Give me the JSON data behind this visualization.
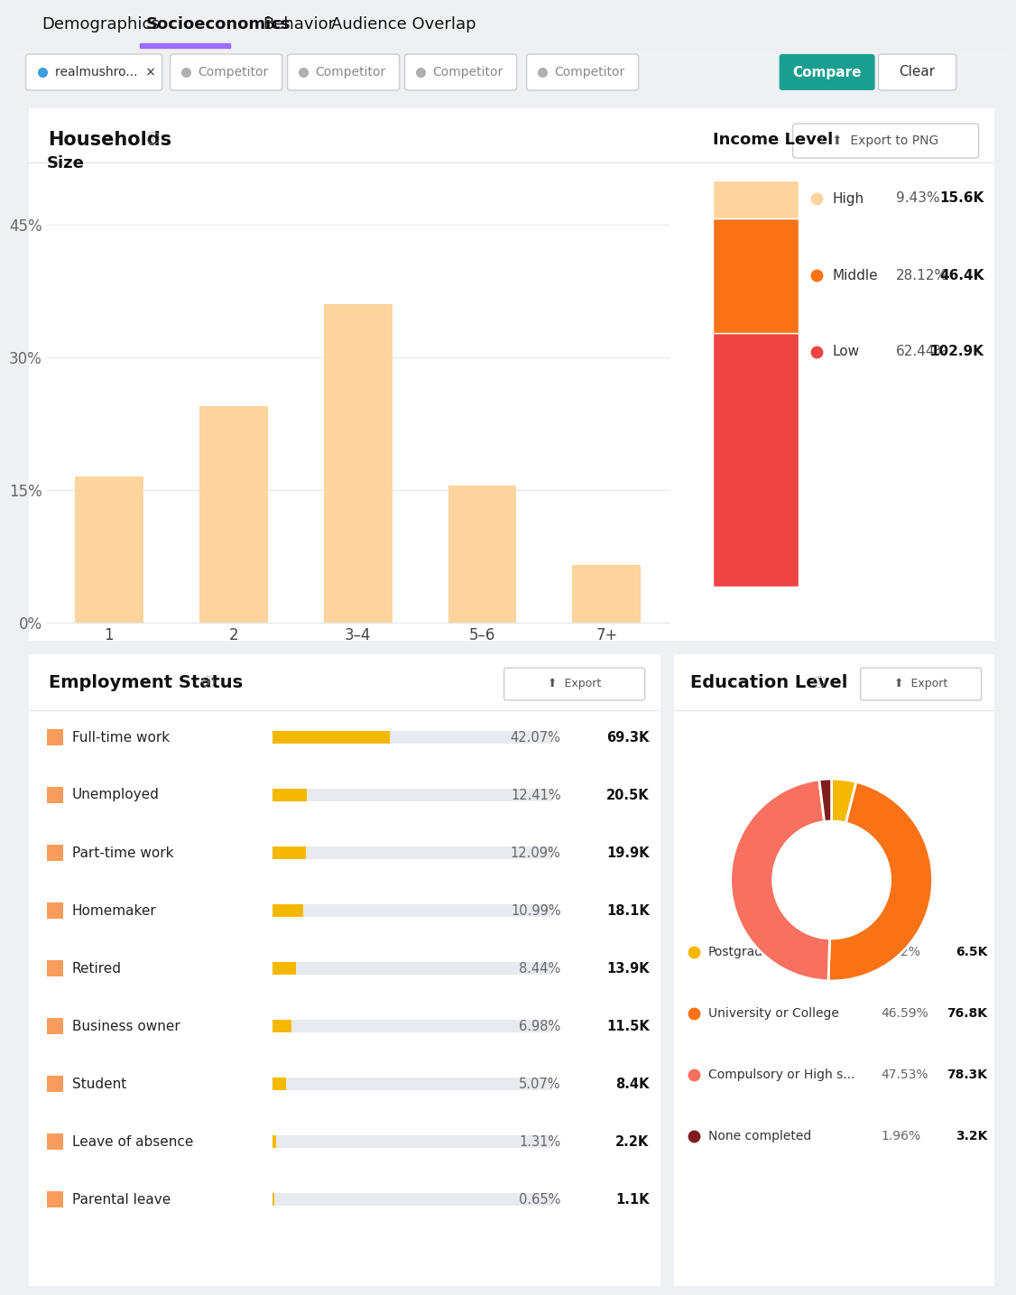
{
  "bg_color": "#eef0f4",
  "card_color": "#ffffff",
  "tab_labels": [
    "Demographics",
    "Socioeconomics",
    "Behavior",
    "Audience Overlap"
  ],
  "active_tab": 1,
  "tab_underline_color": "#9b6dff",
  "compare_btn_color": "#1a9e8f",
  "households_title": "Households",
  "size_title": "Size",
  "size_categories": [
    "1",
    "2",
    "3–4",
    "5–6",
    "7+"
  ],
  "size_values": [
    16.5,
    24.5,
    36.0,
    15.5,
    6.5
  ],
  "size_bar_color": "#fdd49e",
  "size_yticks": [
    "0%",
    "15%",
    "30%",
    "45%"
  ],
  "size_ytick_vals": [
    0,
    15,
    30,
    45
  ],
  "income_title": "Income Level",
  "income_labels": [
    "High",
    "Middle",
    "Low"
  ],
  "income_pcts": [
    "9.43%",
    "28.12%",
    "62.44%"
  ],
  "income_vals": [
    "15.6K",
    "46.4K",
    "102.9K"
  ],
  "income_colors": [
    "#fdd49e",
    "#f97316",
    "#ef4444"
  ],
  "income_stacked_vals": [
    9.43,
    28.12,
    62.44
  ],
  "employment_title": "Employment Status",
  "employment_labels": [
    "Full-time work",
    "Unemployed",
    "Part-time work",
    "Homemaker",
    "Retired",
    "Business owner",
    "Student",
    "Leave of absence",
    "Parental leave"
  ],
  "employment_pcts": [
    "42.07%",
    "12.41%",
    "12.09%",
    "10.99%",
    "8.44%",
    "6.98%",
    "5.07%",
    "1.31%",
    "0.65%"
  ],
  "employment_vals": [
    "69.3K",
    "20.5K",
    "19.9K",
    "18.1K",
    "13.9K",
    "11.5K",
    "8.4K",
    "2.2K",
    "1.1K"
  ],
  "employment_bar_pcts": [
    42.07,
    12.41,
    12.09,
    10.99,
    8.44,
    6.98,
    5.07,
    1.31,
    0.65
  ],
  "employment_bar_color": "#f5b800",
  "employment_bar_bg": "#e8eaf0",
  "education_title": "Education Level",
  "edu_labels": [
    "Postgraduate",
    "University or College",
    "Compulsory or High s...",
    "None completed"
  ],
  "edu_pcts": [
    "3.92%",
    "46.59%",
    "47.53%",
    "1.96%"
  ],
  "edu_vals": [
    "6.5K",
    "76.8K",
    "78.3K",
    "3.2K"
  ],
  "edu_colors": [
    "#f5b800",
    "#f97316",
    "#f87060",
    "#7f1d1d"
  ],
  "edu_pie_vals": [
    3.92,
    46.59,
    47.53,
    1.96
  ]
}
